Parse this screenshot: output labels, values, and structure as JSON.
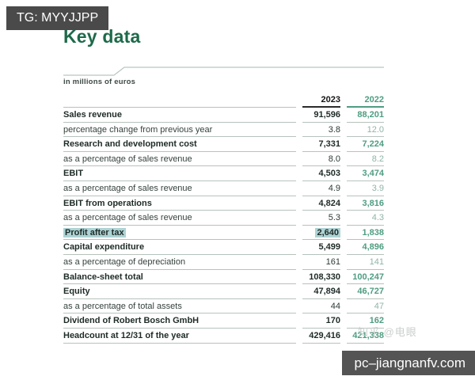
{
  "overlays": {
    "tg_badge": "TG: MYYJJPP",
    "watermark": "知乎 @电眼",
    "site_badge": "pc–jiangnanfv.com"
  },
  "document": {
    "title": "Key data",
    "unit_note": "in millions of euros"
  },
  "table": {
    "columns": [
      "2023",
      "2022"
    ],
    "rows": [
      {
        "label": "Sales revenue",
        "v2023": "91,596",
        "v2022": "88,201",
        "bold": true,
        "highlight": false
      },
      {
        "label": "percentage change from previous year",
        "v2023": "3.8",
        "v2022": "12.0",
        "bold": false,
        "highlight": false
      },
      {
        "label": "Research and development cost",
        "v2023": "7,331",
        "v2022": "7,224",
        "bold": true,
        "highlight": false
      },
      {
        "label": "as a percentage of sales revenue",
        "v2023": "8.0",
        "v2022": "8.2",
        "bold": false,
        "highlight": false
      },
      {
        "label": "EBIT",
        "v2023": "4,503",
        "v2022": "3,474",
        "bold": true,
        "highlight": false
      },
      {
        "label": "as a percentage of sales revenue",
        "v2023": "4.9",
        "v2022": "3.9",
        "bold": false,
        "highlight": false
      },
      {
        "label": "EBIT from operations",
        "v2023": "4,824",
        "v2022": "3,816",
        "bold": true,
        "highlight": false
      },
      {
        "label": "as a percentage of sales revenue",
        "v2023": "5.3",
        "v2022": "4.3",
        "bold": false,
        "highlight": false
      },
      {
        "label": "Profit after tax",
        "v2023": "2,640",
        "v2022": "1,838",
        "bold": true,
        "highlight": true
      },
      {
        "label": "Capital expenditure",
        "v2023": "5,499",
        "v2022": "4,896",
        "bold": true,
        "highlight": false
      },
      {
        "label": "as a percentage of depreciation",
        "v2023": "161",
        "v2022": "141",
        "bold": false,
        "highlight": false
      },
      {
        "label": "Balance-sheet total",
        "v2023": "108,330",
        "v2022": "100,247",
        "bold": true,
        "highlight": false
      },
      {
        "label": "Equity",
        "v2023": "47,894",
        "v2022": "46,727",
        "bold": true,
        "highlight": false
      },
      {
        "label": "as a percentage of total assets",
        "v2023": "44",
        "v2022": "47",
        "bold": false,
        "highlight": false
      },
      {
        "label": "Dividend of Robert Bosch GmbH",
        "v2023": "170",
        "v2022": "162",
        "bold": true,
        "highlight": false
      },
      {
        "label": "Headcount at 12/31 of the year",
        "v2023": "429,416",
        "v2022": "421,338",
        "bold": true,
        "highlight": false
      }
    ]
  },
  "colors": {
    "title_green": "#1d6a4a",
    "col_2022_green": "#4f9d81",
    "col_2022_light_green": "#8fb4a7",
    "highlight_teal": "#aed3d4",
    "text_dark": "#1e2b27",
    "rule_gray": "#b7c2bc",
    "badge_gray": "#4a4a4a"
  }
}
